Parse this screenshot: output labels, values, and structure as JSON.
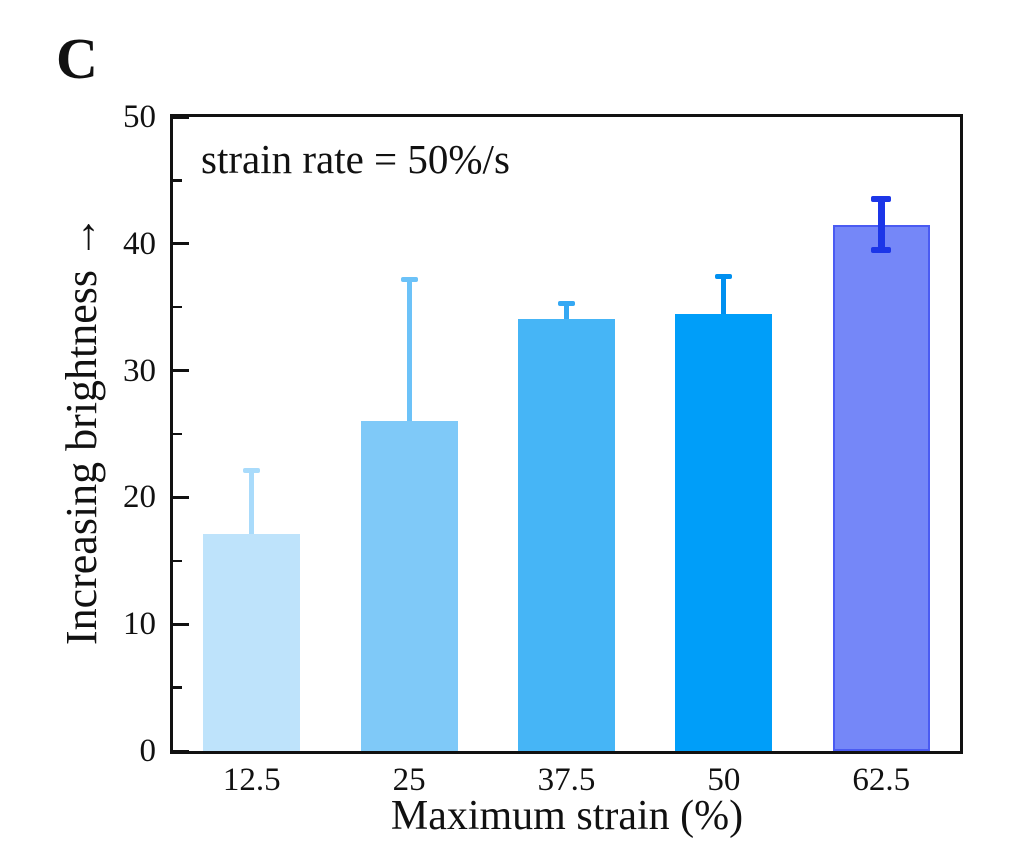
{
  "panel_label": "C",
  "annotation": "strain rate = 50%/s",
  "chart_data": {
    "type": "bar",
    "title": "",
    "xlabel": "Maximum strain (%)",
    "ylabel": "Increasing brightness →",
    "categories": [
      "12.5",
      "25",
      "37.5",
      "50",
      "62.5"
    ],
    "values": [
      17.1,
      26.0,
      34.1,
      34.5,
      41.5
    ],
    "error_plus": [
      5.0,
      11.2,
      1.2,
      2.9,
      2.0
    ],
    "error_minus": [
      0,
      0,
      0,
      0,
      2.0
    ],
    "bar_colors": [
      "#bee3fb",
      "#7fc9f8",
      "#46b5f6",
      "#009ef9",
      "#7587f8"
    ],
    "bar_border_colors": [
      null,
      null,
      null,
      null,
      "#4a5bf2"
    ],
    "error_colors": [
      "#a9dbfb",
      "#6cc2f8",
      "#35a8f3",
      "#0090f0",
      "#1c36e8"
    ],
    "ylim": [
      0,
      50
    ],
    "y_major_ticks": [
      0,
      10,
      20,
      30,
      40,
      50
    ],
    "y_major_tick_labels": [
      "0",
      "10",
      "20",
      "30",
      "40",
      "50"
    ],
    "y_minor_ticks": [
      5,
      15,
      25,
      35,
      45
    ],
    "grid": false,
    "legend": null,
    "annotation": "strain rate = 50%/s",
    "axis_color": "#111111"
  }
}
